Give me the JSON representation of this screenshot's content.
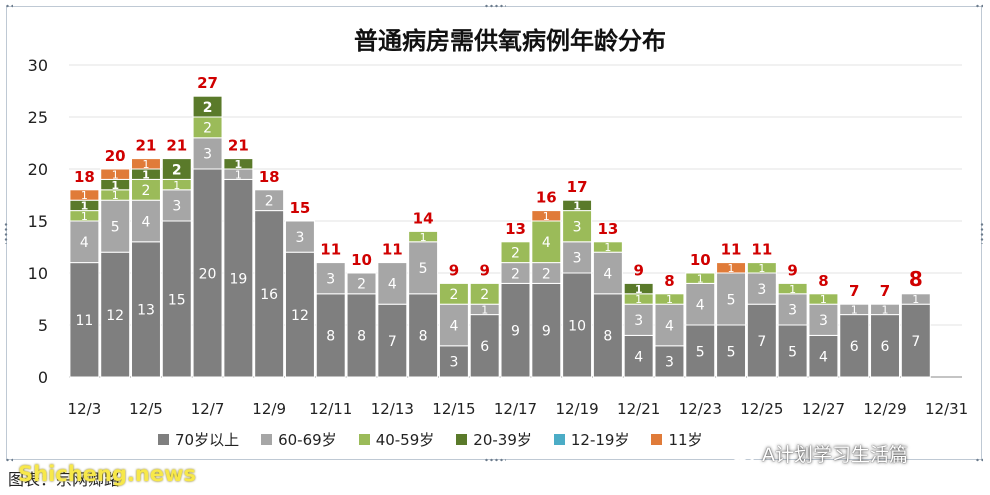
{
  "chart_data": {
    "type": "bar",
    "stacked": true,
    "title": "普通病房需供氧病例年龄分布",
    "xlabel": "",
    "ylabel": "",
    "ylim": [
      0,
      30
    ],
    "yticks": [
      "0",
      "5",
      "10",
      "15",
      "20",
      "25",
      "30"
    ],
    "grid": true,
    "legend_position": "bottom",
    "categories": [
      "12/3",
      "12/4",
      "12/5",
      "12/6",
      "12/7",
      "12/8",
      "12/9",
      "12/10",
      "12/11",
      "12/12",
      "12/13",
      "12/14",
      "12/15",
      "12/16",
      "12/17",
      "12/18",
      "12/19",
      "12/20",
      "12/21",
      "12/22",
      "12/23",
      "12/24",
      "12/25",
      "12/26",
      "12/27",
      "12/28",
      "12/29",
      "12/30",
      "12/31"
    ],
    "x_tick_labels": [
      "12/3",
      "12/5",
      "12/7",
      "12/9",
      "12/11",
      "12/13",
      "12/15",
      "12/17",
      "12/19",
      "12/21",
      "12/23",
      "12/25",
      "12/27",
      "12/29",
      "12/31"
    ],
    "series": [
      {
        "name": "70岁以上",
        "color": "#7f7f7f",
        "values": [
          11,
          12,
          13,
          15,
          20,
          19,
          16,
          12,
          8,
          8,
          7,
          8,
          3,
          6,
          9,
          9,
          10,
          8,
          4,
          3,
          5,
          5,
          7,
          5,
          4,
          6,
          6,
          7,
          null
        ]
      },
      {
        "name": "60-69岁",
        "color": "#a6a6a6",
        "values": [
          4,
          5,
          4,
          3,
          3,
          1,
          2,
          3,
          3,
          2,
          4,
          5,
          4,
          1,
          2,
          2,
          3,
          4,
          3,
          4,
          4,
          5,
          3,
          3,
          3,
          1,
          1,
          1,
          null
        ]
      },
      {
        "name": "40-59岁",
        "color": "#9bbb59",
        "values": [
          1,
          1,
          2,
          1,
          2,
          0,
          0,
          0,
          0,
          0,
          0,
          1,
          2,
          2,
          2,
          4,
          3,
          1,
          1,
          1,
          1,
          0,
          1,
          1,
          1,
          0,
          0,
          0,
          null
        ]
      },
      {
        "name": "20-39岁",
        "color": "#5a7a2a",
        "values": [
          1,
          1,
          1,
          2,
          2,
          1,
          0,
          0,
          0,
          0,
          0,
          0,
          0,
          0,
          0,
          0,
          1,
          0,
          1,
          0,
          0,
          0,
          0,
          0,
          0,
          0,
          0,
          0,
          null
        ]
      },
      {
        "name": "12-19岁",
        "color": "#4bacc6",
        "values": [
          0,
          0,
          0,
          0,
          0,
          0,
          0,
          0,
          0,
          0,
          0,
          0,
          0,
          0,
          0,
          0,
          0,
          0,
          0,
          0,
          0,
          0,
          0,
          0,
          0,
          0,
          0,
          0,
          null
        ]
      },
      {
        "name": "11岁",
        "color": "#e07b39",
        "values": [
          1,
          1,
          1,
          0,
          0,
          0,
          0,
          0,
          0,
          0,
          0,
          0,
          0,
          0,
          0,
          1,
          0,
          0,
          0,
          0,
          0,
          1,
          0,
          0,
          0,
          0,
          0,
          0,
          null
        ]
      }
    ],
    "totals": [
      18,
      20,
      21,
      21,
      27,
      21,
      18,
      15,
      11,
      10,
      11,
      14,
      9,
      9,
      13,
      16,
      17,
      13,
      9,
      8,
      10,
      11,
      11,
      9,
      8,
      7,
      7,
      8,
      null
    ],
    "totals_color": "#d00000"
  },
  "legend": [
    "70岁以上",
    "60-69岁",
    "40-59岁",
    "20-39岁",
    "12-19岁",
    "11岁"
  ],
  "source_text": "图表：宗网卿路",
  "watermark_text": "Shicheng.news",
  "wechat_text": "A计划学习生活篇",
  "wechat_icon": "wechat-icon"
}
